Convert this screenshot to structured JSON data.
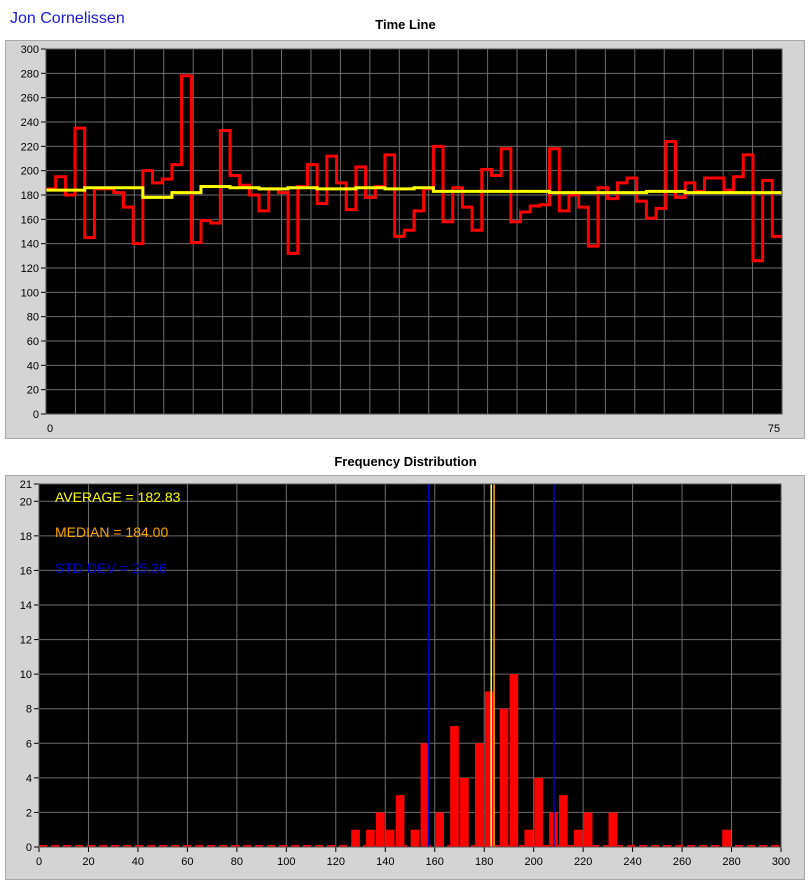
{
  "app_title": "Jon Cornelissen",
  "chart_data": [
    {
      "type": "line",
      "title": "Time Line",
      "xlabel": "",
      "ylabel": "",
      "xlim": [
        0,
        75
      ],
      "ylim": [
        0,
        300
      ],
      "x_tick_labels": [
        "0",
        "75"
      ],
      "y_ticks": [
        0,
        20,
        40,
        60,
        80,
        100,
        120,
        140,
        160,
        180,
        200,
        220,
        240,
        260,
        280,
        300
      ],
      "grid": true,
      "background": "#000000",
      "series": [
        {
          "color": "#ff0000",
          "style": "step",
          "values": [
            185,
            195,
            180,
            235,
            145,
            185,
            185,
            182,
            170,
            140,
            200,
            190,
            193,
            205,
            278,
            141,
            159,
            157,
            233,
            196,
            188,
            180,
            167,
            185,
            182,
            132,
            187,
            205,
            173,
            212,
            190,
            168,
            203,
            178,
            187,
            213,
            146,
            151,
            167,
            185,
            220,
            158,
            186,
            170,
            151,
            201,
            196,
            218,
            158,
            166,
            171,
            172,
            218,
            167,
            180,
            170,
            138,
            186,
            177,
            190,
            194,
            175,
            161,
            169,
            224,
            178,
            190,
            183,
            194,
            194,
            184,
            195,
            213,
            126,
            192,
            146
          ]
        },
        {
          "color": "#ffff00",
          "style": "step",
          "values": [
            184,
            184,
            184,
            184,
            186,
            186,
            186,
            186,
            186,
            186,
            178,
            178,
            178,
            182,
            182,
            182,
            187,
            187,
            187,
            186,
            186,
            186,
            185,
            185,
            185,
            186,
            186,
            186,
            185,
            185,
            185,
            185,
            186,
            186,
            186,
            185,
            185,
            185,
            186,
            186,
            183,
            183,
            183,
            183,
            183,
            183,
            183,
            183,
            183,
            183,
            183,
            183,
            182,
            182,
            182,
            182,
            182,
            182,
            182,
            182,
            182,
            182,
            183,
            183,
            183,
            183,
            182,
            182,
            182,
            182,
            182,
            182,
            182,
            182,
            182,
            182
          ]
        }
      ]
    },
    {
      "type": "bar",
      "title": "Frequency Distribution",
      "xlabel": "",
      "ylabel": "",
      "xlim": [
        0,
        300
      ],
      "ylim": [
        0,
        21
      ],
      "x_ticks": [
        0,
        20,
        40,
        60,
        80,
        100,
        120,
        140,
        160,
        180,
        200,
        220,
        240,
        260,
        280,
        300
      ],
      "y_ticks": [
        0,
        2,
        4,
        6,
        8,
        10,
        12,
        14,
        16,
        18,
        20,
        21
      ],
      "grid": true,
      "background": "#000000",
      "bar_color": "#ff0000",
      "bars": [
        {
          "x": 128,
          "value": 1
        },
        {
          "x": 134,
          "value": 1
        },
        {
          "x": 138,
          "value": 2
        },
        {
          "x": 142,
          "value": 1
        },
        {
          "x": 146,
          "value": 3
        },
        {
          "x": 152,
          "value": 1
        },
        {
          "x": 156,
          "value": 6
        },
        {
          "x": 162,
          "value": 2
        },
        {
          "x": 168,
          "value": 7
        },
        {
          "x": 172,
          "value": 4
        },
        {
          "x": 178,
          "value": 6
        },
        {
          "x": 182,
          "value": 9
        },
        {
          "x": 188,
          "value": 8
        },
        {
          "x": 192,
          "value": 10
        },
        {
          "x": 198,
          "value": 1
        },
        {
          "x": 202,
          "value": 4
        },
        {
          "x": 208,
          "value": 2
        },
        {
          "x": 212,
          "value": 3
        },
        {
          "x": 218,
          "value": 1
        },
        {
          "x": 222,
          "value": 2
        },
        {
          "x": 232,
          "value": 2
        },
        {
          "x": 278,
          "value": 1
        }
      ],
      "reference_lines": [
        {
          "x": 157.47,
          "color": "#0000cc"
        },
        {
          "x": 182.83,
          "color": "#ffff66"
        },
        {
          "x": 184.0,
          "color": "#ffa500"
        },
        {
          "x": 208.19,
          "color": "#0000cc"
        }
      ],
      "annotations": [
        {
          "text": "AVERAGE = 182.83",
          "color": "#ffff00"
        },
        {
          "text": "MEDIAN = 184.00",
          "color": "#ffa500"
        },
        {
          "text": "STD DEV = 25.36",
          "color": "#0000cc"
        }
      ]
    }
  ]
}
